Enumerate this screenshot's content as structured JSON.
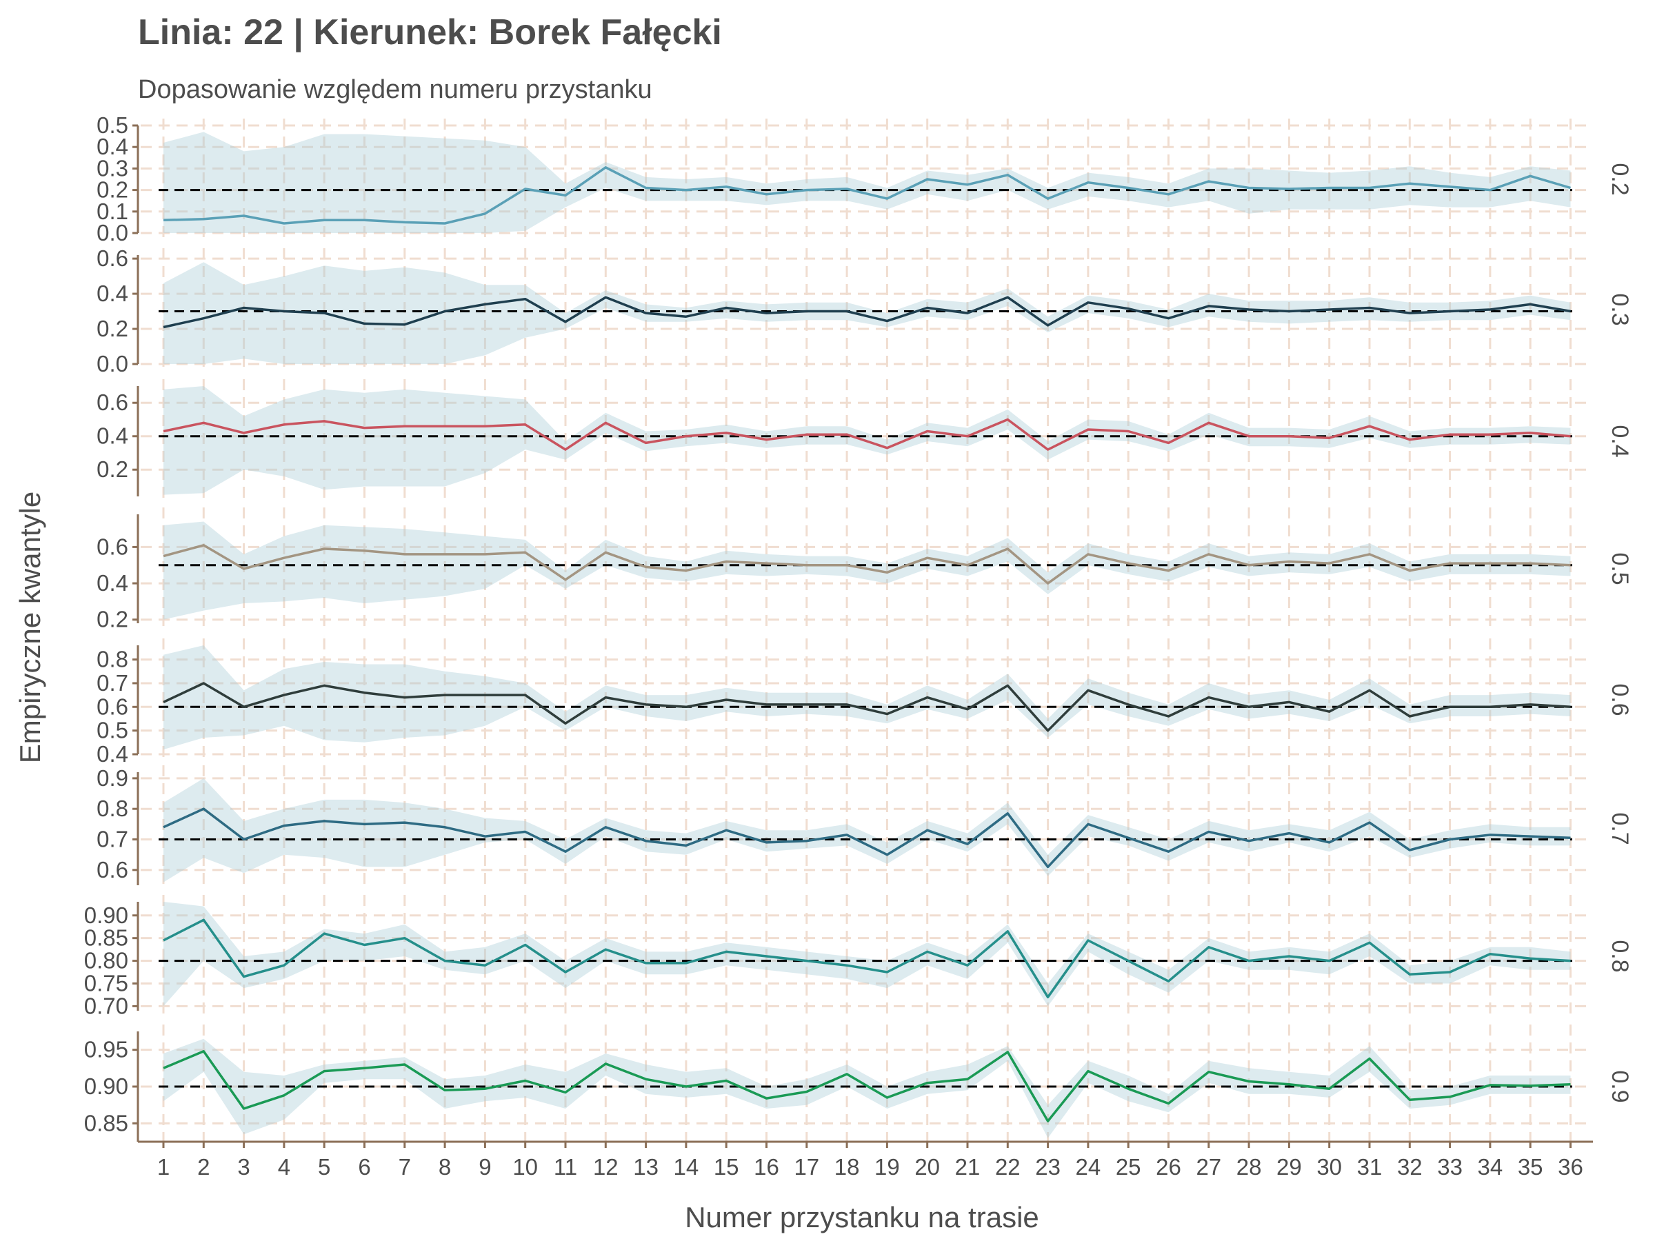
{
  "title": "Linia: 22 | Kierunek: Borek Fałęcki",
  "subtitle": "Dopasowanie względem numeru przystanku",
  "colors": {
    "grid": "#f0ddd0",
    "axis": "#8b6f57",
    "band": "#a9cdd6",
    "ref": "#000000",
    "text": "#4d4d4d"
  },
  "chart_data": {
    "type": "line",
    "title": "Linia: 22 | Kierunek: Borek Fałęcki",
    "subtitle": "Dopasowanie względem numeru przystanku",
    "xlabel": "Numer przystanku na trasie",
    "ylabel": "Empiryczne kwantyle",
    "x": [
      1,
      2,
      3,
      4,
      5,
      6,
      7,
      8,
      9,
      10,
      11,
      12,
      13,
      14,
      15,
      16,
      17,
      18,
      19,
      20,
      21,
      22,
      23,
      24,
      25,
      26,
      27,
      28,
      29,
      30,
      31,
      32,
      33,
      34,
      35,
      36
    ],
    "x_ticks": [
      "1",
      "2",
      "3",
      "4",
      "5",
      "6",
      "7",
      "8",
      "9",
      "10",
      "11",
      "12",
      "13",
      "14",
      "15",
      "16",
      "17",
      "18",
      "19",
      "20",
      "21",
      "22",
      "23",
      "24",
      "25",
      "26",
      "27",
      "28",
      "29",
      "30",
      "31",
      "32",
      "33",
      "34",
      "35",
      "36"
    ],
    "grid": true,
    "legend": "none",
    "panels": [
      {
        "label": "0.2",
        "ylim": [
          0.0,
          0.5
        ],
        "yticks": [
          "0.0",
          "0.1",
          "0.2",
          "0.3",
          "0.4",
          "0.5"
        ],
        "ytick_values": [
          0.0,
          0.1,
          0.2,
          0.3,
          0.4,
          0.5
        ],
        "reference": 0.2,
        "color": "#5aa0b6",
        "values": [
          0.06,
          0.065,
          0.08,
          0.045,
          0.06,
          0.06,
          0.05,
          0.045,
          0.09,
          0.205,
          0.175,
          0.305,
          0.21,
          0.2,
          0.215,
          0.18,
          0.2,
          0.205,
          0.16,
          0.25,
          0.225,
          0.27,
          0.16,
          0.235,
          0.21,
          0.18,
          0.24,
          0.21,
          0.205,
          0.21,
          0.21,
          0.23,
          0.215,
          0.2,
          0.265,
          0.21
        ],
        "band_lower": [
          0.0,
          0.0,
          0.0,
          0.0,
          0.0,
          0.0,
          0.0,
          0.0,
          0.0,
          0.01,
          0.12,
          0.21,
          0.15,
          0.15,
          0.15,
          0.13,
          0.15,
          0.15,
          0.11,
          0.18,
          0.15,
          0.2,
          0.11,
          0.17,
          0.15,
          0.12,
          0.15,
          0.09,
          0.11,
          0.11,
          0.11,
          0.13,
          0.12,
          0.12,
          0.15,
          0.12
        ],
        "band_upper": [
          0.42,
          0.47,
          0.38,
          0.4,
          0.46,
          0.46,
          0.45,
          0.44,
          0.43,
          0.4,
          0.23,
          0.33,
          0.26,
          0.25,
          0.26,
          0.23,
          0.25,
          0.26,
          0.21,
          0.29,
          0.27,
          0.3,
          0.21,
          0.28,
          0.26,
          0.23,
          0.3,
          0.3,
          0.29,
          0.28,
          0.29,
          0.31,
          0.28,
          0.26,
          0.31,
          0.29
        ]
      },
      {
        "label": "0.3",
        "ylim": [
          0.0,
          0.62
        ],
        "yticks": [
          "0.0",
          "0.2",
          "0.4",
          "0.6"
        ],
        "ytick_values": [
          0.0,
          0.2,
          0.4,
          0.6
        ],
        "reference": 0.3,
        "color": "#1f3f4f",
        "values": [
          0.21,
          0.26,
          0.32,
          0.3,
          0.29,
          0.23,
          0.225,
          0.3,
          0.34,
          0.37,
          0.24,
          0.38,
          0.29,
          0.27,
          0.32,
          0.29,
          0.3,
          0.3,
          0.245,
          0.32,
          0.29,
          0.38,
          0.22,
          0.35,
          0.315,
          0.26,
          0.33,
          0.31,
          0.3,
          0.31,
          0.32,
          0.29,
          0.3,
          0.31,
          0.34,
          0.3
        ],
        "band_lower": [
          0.0,
          0.0,
          0.03,
          0.0,
          0.0,
          0.0,
          0.0,
          0.0,
          0.05,
          0.15,
          0.2,
          0.32,
          0.24,
          0.24,
          0.26,
          0.24,
          0.25,
          0.25,
          0.21,
          0.27,
          0.25,
          0.33,
          0.18,
          0.29,
          0.26,
          0.21,
          0.27,
          0.24,
          0.23,
          0.24,
          0.25,
          0.24,
          0.25,
          0.25,
          0.28,
          0.25
        ],
        "band_upper": [
          0.46,
          0.58,
          0.45,
          0.5,
          0.56,
          0.53,
          0.55,
          0.52,
          0.45,
          0.45,
          0.29,
          0.42,
          0.34,
          0.32,
          0.36,
          0.34,
          0.35,
          0.35,
          0.29,
          0.37,
          0.35,
          0.43,
          0.27,
          0.39,
          0.36,
          0.31,
          0.4,
          0.36,
          0.36,
          0.36,
          0.38,
          0.35,
          0.35,
          0.36,
          0.39,
          0.35
        ]
      },
      {
        "label": "0.4",
        "ylim": [
          0.04,
          0.7
        ],
        "yticks": [
          "0.2",
          "0.4",
          "0.6"
        ],
        "ytick_values": [
          0.2,
          0.4,
          0.6
        ],
        "reference": 0.4,
        "color": "#c9545f",
        "values": [
          0.43,
          0.48,
          0.42,
          0.47,
          0.49,
          0.45,
          0.46,
          0.46,
          0.46,
          0.47,
          0.32,
          0.48,
          0.36,
          0.4,
          0.42,
          0.38,
          0.41,
          0.41,
          0.33,
          0.43,
          0.4,
          0.5,
          0.32,
          0.44,
          0.43,
          0.36,
          0.48,
          0.4,
          0.4,
          0.39,
          0.46,
          0.38,
          0.41,
          0.41,
          0.42,
          0.4
        ],
        "band_lower": [
          0.05,
          0.06,
          0.2,
          0.16,
          0.08,
          0.1,
          0.1,
          0.1,
          0.18,
          0.32,
          0.26,
          0.42,
          0.31,
          0.34,
          0.36,
          0.33,
          0.35,
          0.35,
          0.29,
          0.37,
          0.34,
          0.44,
          0.26,
          0.38,
          0.37,
          0.31,
          0.41,
          0.34,
          0.34,
          0.33,
          0.39,
          0.33,
          0.35,
          0.35,
          0.36,
          0.35
        ],
        "band_upper": [
          0.68,
          0.7,
          0.52,
          0.62,
          0.68,
          0.66,
          0.68,
          0.66,
          0.64,
          0.62,
          0.37,
          0.54,
          0.43,
          0.44,
          0.47,
          0.43,
          0.46,
          0.46,
          0.38,
          0.48,
          0.45,
          0.56,
          0.37,
          0.5,
          0.49,
          0.41,
          0.54,
          0.45,
          0.45,
          0.44,
          0.52,
          0.43,
          0.45,
          0.45,
          0.46,
          0.45
        ]
      },
      {
        "label": "0.5",
        "ylim": [
          0.18,
          0.78
        ],
        "yticks": [
          "0.2",
          "0.4",
          "0.6"
        ],
        "ytick_values": [
          0.2,
          0.4,
          0.6
        ],
        "reference": 0.5,
        "color": "#a39582",
        "values": [
          0.55,
          0.61,
          0.48,
          0.54,
          0.59,
          0.58,
          0.56,
          0.56,
          0.56,
          0.57,
          0.42,
          0.57,
          0.49,
          0.47,
          0.52,
          0.51,
          0.5,
          0.5,
          0.46,
          0.54,
          0.5,
          0.59,
          0.4,
          0.56,
          0.51,
          0.47,
          0.56,
          0.5,
          0.52,
          0.51,
          0.56,
          0.47,
          0.51,
          0.51,
          0.51,
          0.5
        ],
        "band_lower": [
          0.2,
          0.25,
          0.29,
          0.3,
          0.32,
          0.29,
          0.31,
          0.33,
          0.37,
          0.5,
          0.37,
          0.5,
          0.43,
          0.41,
          0.45,
          0.44,
          0.45,
          0.44,
          0.4,
          0.48,
          0.44,
          0.52,
          0.34,
          0.5,
          0.45,
          0.41,
          0.49,
          0.44,
          0.46,
          0.45,
          0.49,
          0.41,
          0.45,
          0.45,
          0.45,
          0.44
        ],
        "band_upper": [
          0.72,
          0.74,
          0.56,
          0.66,
          0.72,
          0.71,
          0.7,
          0.68,
          0.66,
          0.64,
          0.47,
          0.64,
          0.55,
          0.52,
          0.58,
          0.56,
          0.55,
          0.55,
          0.51,
          0.59,
          0.55,
          0.65,
          0.46,
          0.62,
          0.56,
          0.52,
          0.62,
          0.55,
          0.57,
          0.56,
          0.62,
          0.52,
          0.56,
          0.56,
          0.56,
          0.55
        ]
      },
      {
        "label": "0.6",
        "ylim": [
          0.4,
          0.86
        ],
        "yticks": [
          "0.4",
          "0.5",
          "0.6",
          "0.7",
          "0.8"
        ],
        "ytick_values": [
          0.4,
          0.5,
          0.6,
          0.7,
          0.8
        ],
        "reference": 0.6,
        "color": "#2f3d3b",
        "values": [
          0.62,
          0.7,
          0.6,
          0.65,
          0.69,
          0.66,
          0.64,
          0.65,
          0.65,
          0.65,
          0.53,
          0.64,
          0.61,
          0.6,
          0.63,
          0.61,
          0.61,
          0.61,
          0.57,
          0.64,
          0.59,
          0.69,
          0.5,
          0.67,
          0.61,
          0.56,
          0.64,
          0.6,
          0.62,
          0.58,
          0.67,
          0.56,
          0.6,
          0.6,
          0.61,
          0.6
        ],
        "band_lower": [
          0.42,
          0.47,
          0.48,
          0.52,
          0.46,
          0.45,
          0.47,
          0.48,
          0.52,
          0.6,
          0.5,
          0.6,
          0.56,
          0.54,
          0.58,
          0.56,
          0.57,
          0.56,
          0.53,
          0.59,
          0.55,
          0.63,
          0.47,
          0.61,
          0.56,
          0.52,
          0.59,
          0.55,
          0.57,
          0.54,
          0.61,
          0.53,
          0.56,
          0.56,
          0.57,
          0.56
        ],
        "band_upper": [
          0.82,
          0.86,
          0.67,
          0.76,
          0.79,
          0.78,
          0.78,
          0.75,
          0.73,
          0.7,
          0.58,
          0.69,
          0.65,
          0.65,
          0.68,
          0.66,
          0.66,
          0.66,
          0.61,
          0.69,
          0.63,
          0.74,
          0.55,
          0.72,
          0.66,
          0.61,
          0.7,
          0.65,
          0.67,
          0.63,
          0.72,
          0.61,
          0.65,
          0.65,
          0.66,
          0.65
        ]
      },
      {
        "label": "0.7",
        "ylim": [
          0.55,
          0.92
        ],
        "yticks": [
          "0.6",
          "0.7",
          "0.8",
          "0.9"
        ],
        "ytick_values": [
          0.6,
          0.7,
          0.8,
          0.9
        ],
        "reference": 0.7,
        "color": "#2e6b83",
        "values": [
          0.74,
          0.8,
          0.7,
          0.745,
          0.76,
          0.75,
          0.755,
          0.74,
          0.71,
          0.725,
          0.66,
          0.74,
          0.695,
          0.68,
          0.73,
          0.69,
          0.695,
          0.715,
          0.65,
          0.73,
          0.685,
          0.785,
          0.61,
          0.75,
          0.705,
          0.66,
          0.725,
          0.695,
          0.72,
          0.69,
          0.755,
          0.665,
          0.7,
          0.715,
          0.71,
          0.705
        ],
        "band_lower": [
          0.56,
          0.64,
          0.59,
          0.65,
          0.64,
          0.61,
          0.61,
          0.65,
          0.69,
          0.7,
          0.62,
          0.71,
          0.66,
          0.65,
          0.7,
          0.66,
          0.67,
          0.68,
          0.62,
          0.7,
          0.66,
          0.75,
          0.58,
          0.71,
          0.68,
          0.63,
          0.69,
          0.66,
          0.69,
          0.66,
          0.71,
          0.64,
          0.67,
          0.69,
          0.68,
          0.68
        ],
        "band_upper": [
          0.82,
          0.9,
          0.76,
          0.8,
          0.83,
          0.83,
          0.82,
          0.8,
          0.77,
          0.76,
          0.7,
          0.77,
          0.73,
          0.72,
          0.76,
          0.73,
          0.73,
          0.75,
          0.69,
          0.76,
          0.72,
          0.82,
          0.65,
          0.78,
          0.74,
          0.7,
          0.76,
          0.73,
          0.75,
          0.73,
          0.79,
          0.7,
          0.73,
          0.75,
          0.74,
          0.74
        ]
      },
      {
        "label": "0.8",
        "ylim": [
          0.69,
          0.93
        ],
        "yticks": [
          "0.70",
          "0.75",
          "0.80",
          "0.85",
          "0.90"
        ],
        "ytick_values": [
          0.7,
          0.75,
          0.8,
          0.85,
          0.9
        ],
        "reference": 0.8,
        "color": "#258f8b",
        "values": [
          0.845,
          0.89,
          0.765,
          0.79,
          0.86,
          0.835,
          0.85,
          0.8,
          0.79,
          0.835,
          0.775,
          0.825,
          0.795,
          0.795,
          0.82,
          0.81,
          0.8,
          0.79,
          0.775,
          0.82,
          0.79,
          0.865,
          0.72,
          0.845,
          0.8,
          0.755,
          0.83,
          0.8,
          0.81,
          0.8,
          0.84,
          0.77,
          0.775,
          0.815,
          0.805,
          0.8
        ],
        "band_lower": [
          0.7,
          0.8,
          0.74,
          0.76,
          0.8,
          0.8,
          0.81,
          0.78,
          0.77,
          0.8,
          0.74,
          0.8,
          0.77,
          0.77,
          0.79,
          0.78,
          0.77,
          0.76,
          0.74,
          0.79,
          0.76,
          0.84,
          0.7,
          0.82,
          0.77,
          0.73,
          0.8,
          0.78,
          0.78,
          0.77,
          0.81,
          0.75,
          0.75,
          0.79,
          0.78,
          0.78
        ],
        "band_upper": [
          0.93,
          0.92,
          0.81,
          0.82,
          0.87,
          0.86,
          0.88,
          0.82,
          0.83,
          0.86,
          0.8,
          0.85,
          0.82,
          0.82,
          0.84,
          0.83,
          0.82,
          0.81,
          0.8,
          0.84,
          0.81,
          0.88,
          0.75,
          0.86,
          0.82,
          0.78,
          0.85,
          0.82,
          0.83,
          0.82,
          0.86,
          0.79,
          0.8,
          0.83,
          0.83,
          0.82
        ]
      },
      {
        "label": "0.9",
        "ylim": [
          0.825,
          0.975
        ],
        "yticks": [
          "0.85",
          "0.90",
          "0.95"
        ],
        "ytick_values": [
          0.85,
          0.9,
          0.95
        ],
        "reference": 0.9,
        "color": "#1a9a55",
        "values": [
          0.925,
          0.948,
          0.87,
          0.888,
          0.921,
          0.925,
          0.93,
          0.895,
          0.897,
          0.908,
          0.892,
          0.931,
          0.91,
          0.9,
          0.908,
          0.884,
          0.893,
          0.917,
          0.885,
          0.905,
          0.91,
          0.947,
          0.853,
          0.921,
          0.897,
          0.877,
          0.92,
          0.907,
          0.903,
          0.897,
          0.938,
          0.882,
          0.886,
          0.902,
          0.901,
          0.903
        ],
        "band_lower": [
          0.88,
          0.92,
          0.835,
          0.855,
          0.905,
          0.91,
          0.91,
          0.87,
          0.88,
          0.885,
          0.87,
          0.915,
          0.89,
          0.885,
          0.89,
          0.87,
          0.875,
          0.9,
          0.87,
          0.89,
          0.895,
          0.935,
          0.83,
          0.905,
          0.88,
          0.865,
          0.905,
          0.89,
          0.89,
          0.885,
          0.92,
          0.87,
          0.875,
          0.89,
          0.89,
          0.89
        ],
        "band_upper": [
          0.945,
          0.965,
          0.92,
          0.915,
          0.93,
          0.935,
          0.94,
          0.91,
          0.915,
          0.93,
          0.92,
          0.945,
          0.93,
          0.92,
          0.925,
          0.9,
          0.91,
          0.93,
          0.9,
          0.92,
          0.93,
          0.955,
          0.875,
          0.935,
          0.915,
          0.89,
          0.935,
          0.925,
          0.92,
          0.915,
          0.955,
          0.895,
          0.9,
          0.915,
          0.915,
          0.915
        ]
      }
    ]
  }
}
